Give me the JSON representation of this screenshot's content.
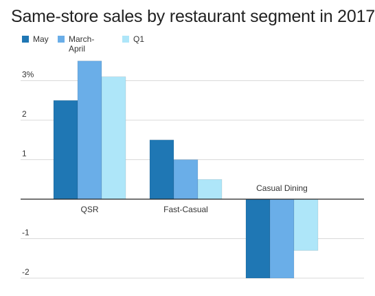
{
  "chart_data": {
    "type": "bar",
    "title": "Same-store sales by restaurant segment in 2017",
    "categories": [
      "QSR",
      "Fast-Casual",
      "Casual Dining"
    ],
    "series": [
      {
        "name": "May",
        "values": [
          2.5,
          1.5,
          -2.0
        ],
        "color": "#1f77b4"
      },
      {
        "name": "March-April",
        "values": [
          3.5,
          1.0,
          -2.0
        ],
        "color": "#6aaee8"
      },
      {
        "name": "Q1",
        "values": [
          3.1,
          0.5,
          -1.3
        ],
        "color": "#aee6f9"
      }
    ],
    "ylim": [
      -2,
      3.5
    ],
    "yticks": [
      {
        "value": 3,
        "label": "3%"
      },
      {
        "value": 2,
        "label": "2"
      },
      {
        "value": 1,
        "label": "1"
      },
      {
        "value": -1,
        "label": "-1"
      },
      {
        "value": -2,
        "label": "-2"
      }
    ],
    "xlabel": "",
    "ylabel": "",
    "grid": true,
    "legend_position": "top-left"
  }
}
